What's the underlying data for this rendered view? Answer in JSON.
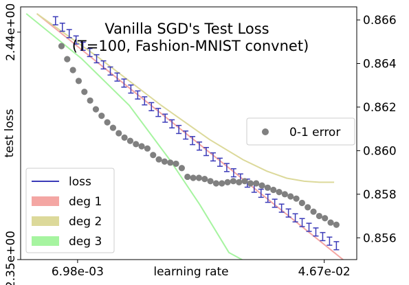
{
  "chart_data": {
    "type": "line",
    "title_lines": [
      "Vanilla SGD's Test Loss",
      "(T=100, Fashion-MNIST convnet)"
    ],
    "xlabel": "learning rate",
    "ylabel_left": "test loss",
    "ylabel_right": "",
    "x_scale": "log",
    "x_ticks": [
      {
        "value": 0.00698,
        "label": "6.98e-03"
      },
      {
        "value": 0.0467,
        "label": "4.67e-02"
      }
    ],
    "xlim": [
      0.0045,
      0.06
    ],
    "left_ylim": [
      2.35,
      2.45
    ],
    "left_ticks": [
      {
        "value": 2.35,
        "label": "2.35e+00"
      },
      {
        "value": 2.44,
        "label": "2.44e+00"
      }
    ],
    "right_ylim": [
      0.855,
      0.8666
    ],
    "right_ticks": [
      {
        "value": 0.856,
        "label": "0.856"
      },
      {
        "value": 0.858,
        "label": "0.858"
      },
      {
        "value": 0.86,
        "label": "0.860"
      },
      {
        "value": 0.862,
        "label": "0.862"
      },
      {
        "value": 0.864,
        "label": "0.864"
      },
      {
        "value": 0.866,
        "label": "0.866"
      }
    ],
    "grid": false,
    "legend_loss": {
      "placement": "lower-left",
      "entries": [
        {
          "label": "loss",
          "color": "#3a3ab8",
          "kind": "line"
        },
        {
          "label": "deg 1",
          "color": "#f4a6a3",
          "kind": "patch"
        },
        {
          "label": "deg 2",
          "color": "#dcd99a",
          "kind": "patch"
        },
        {
          "label": "deg 3",
          "color": "#a6f4a0",
          "kind": "patch"
        }
      ]
    },
    "legend_error": {
      "placement": "center-right",
      "entries": [
        {
          "label": "0-1 error",
          "color": "#808080",
          "kind": "marker"
        }
      ]
    },
    "series": [
      {
        "name": "loss",
        "axis": "left",
        "color": "#3a3ab8",
        "style": "errorbar",
        "x_log_start": -2.23,
        "x_log_end": -1.29,
        "y_start": 2.4445,
        "y_end": 2.3555,
        "curvature": -0.004,
        "error": 0.0016,
        "n": 42
      },
      {
        "name": "deg 1",
        "axis": "left",
        "color": "#f4a6a3",
        "style": "fit-line",
        "x": [
          0.0051,
          0.0549
        ],
        "y": [
          2.4473,
          2.3493
        ]
      },
      {
        "name": "deg 2",
        "axis": "left",
        "color": "#dcd99a",
        "style": "fit-line",
        "x": [
          0.0051,
          0.0083,
          0.0133,
          0.0193,
          0.025,
          0.03,
          0.035,
          0.04,
          0.045,
          0.0504
        ],
        "y": [
          2.4473,
          2.4295,
          2.411,
          2.3975,
          2.3895,
          2.385,
          2.3822,
          2.381,
          2.3806,
          2.3806
        ]
      },
      {
        "name": "deg 3",
        "axis": "left",
        "color": "#a6f4a0",
        "style": "fit-line",
        "x": [
          0.0047,
          0.0072,
          0.0104,
          0.0142,
          0.0179,
          0.0224,
          0.0254
        ],
        "y": [
          2.4473,
          2.4295,
          2.411,
          2.3895,
          2.3717,
          2.3528,
          2.3493
        ]
      },
      {
        "name": "0-1 error",
        "axis": "right",
        "color": "#808080",
        "style": "scatter",
        "x_log_start": -2.21,
        "x_log_end": -1.29,
        "y": [
          0.8648,
          0.8642,
          0.8637,
          0.8632,
          0.8627,
          0.8623,
          0.8619,
          0.8616,
          0.8613,
          0.86105,
          0.8608,
          0.8606,
          0.86045,
          0.8603,
          0.8602,
          0.8601,
          0.8598,
          0.8596,
          0.8595,
          0.85945,
          0.8594,
          0.8592,
          0.8588,
          0.85875,
          0.85875,
          0.8587,
          0.8586,
          0.8585,
          0.8585,
          0.85855,
          0.8586,
          0.85855,
          0.8586,
          0.8585,
          0.8585,
          0.8584,
          0.8583,
          0.8582,
          0.8581,
          0.858,
          0.8579,
          0.8578,
          0.8576,
          0.8574,
          0.8572,
          0.857,
          0.8569,
          0.8567,
          0.8566
        ]
      }
    ]
  }
}
